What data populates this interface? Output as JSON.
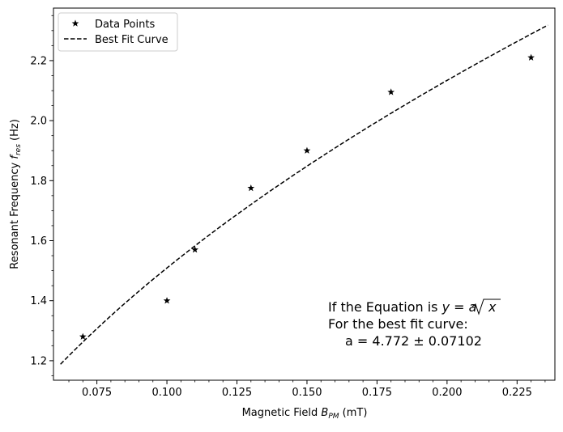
{
  "chart_data": {
    "type": "scatter",
    "xlabel": "Magnetic Field B_PM (mT)",
    "xlabel_main": "Magnetic Field ",
    "xlabel_symbol": "B",
    "xlabel_sub": "PM",
    "xlabel_unit": " (mT)",
    "ylabel": "Resonant Frequency f_res (Hz)",
    "ylabel_main": "Resonant Frequency ",
    "ylabel_symbol": "f",
    "ylabel_sub": "res",
    "ylabel_unit": " (Hz)",
    "xlim": [
      0.0595,
      0.2385
    ],
    "ylim": [
      1.135,
      2.375
    ],
    "x_ticks": [
      0.075,
      0.1,
      0.125,
      0.15,
      0.175,
      0.2,
      0.225
    ],
    "x_tick_labels": [
      "0.075",
      "0.100",
      "0.125",
      "0.150",
      "0.175",
      "0.200",
      "0.225"
    ],
    "y_ticks": [
      1.2,
      1.4,
      1.6,
      1.8,
      2.0,
      2.2
    ],
    "y_tick_labels": [
      "1.2",
      "1.4",
      "1.6",
      "1.8",
      "2.0",
      "2.2"
    ],
    "grid": false,
    "legend_position": "top-left",
    "series": [
      {
        "name": "Data Points",
        "style": "star-markers",
        "color": "#000000",
        "x": [
          0.07,
          0.1,
          0.11,
          0.13,
          0.15,
          0.18,
          0.23
        ],
        "y": [
          1.28,
          1.4,
          1.57,
          1.775,
          1.9,
          2.095,
          2.21
        ]
      },
      {
        "name": "Best Fit Curve",
        "style": "dashed-line",
        "color": "#000000",
        "x_range": [
          0.062,
          0.236
        ],
        "a": 4.772
      }
    ],
    "annotation": {
      "line1_prefix": "If the Equation is ",
      "line1_math": "y = a",
      "line1_radicand": "x",
      "line2": "For the best fit curve:",
      "line3": "a = 4.772 ± 0.07102"
    }
  }
}
